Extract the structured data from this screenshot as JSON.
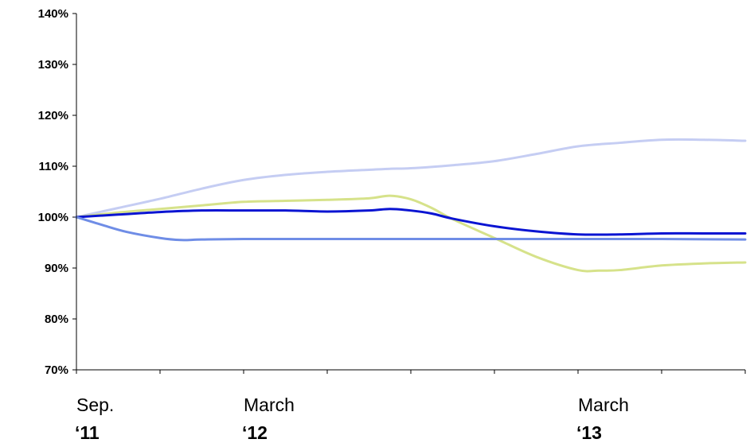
{
  "chart_data": {
    "type": "line",
    "title": "",
    "xlabel": "",
    "ylabel": "",
    "ylim": [
      70,
      140
    ],
    "yticks": [
      70,
      80,
      90,
      100,
      110,
      120,
      130,
      140
    ],
    "ytick_labels": [
      "70%",
      "80%",
      "90%",
      "100%",
      "110%",
      "120%",
      "130%",
      "140%"
    ],
    "xlim": [
      0,
      8
    ],
    "x_tick_positions": [
      0,
      1,
      2,
      3,
      4,
      5,
      6,
      7,
      8
    ],
    "x_labels": [
      {
        "x": 0,
        "line1": "Sep.",
        "line2": "‘11"
      },
      {
        "x": 2,
        "line1": "March",
        "line2": "‘12"
      },
      {
        "x": 6,
        "line1": "March",
        "line2": "‘13"
      }
    ],
    "grid": false,
    "legend": "none",
    "series": [
      {
        "color": "#c5cdf3",
        "x": [
          0,
          0.5,
          1,
          1.5,
          2,
          2.5,
          3,
          3.5,
          3.75,
          4,
          4.5,
          5,
          5.5,
          6,
          6.5,
          7,
          7.5,
          8
        ],
        "values": [
          100,
          101.8,
          103.6,
          105.6,
          107.3,
          108.3,
          108.9,
          109.3,
          109.5,
          109.6,
          110.2,
          111,
          112.4,
          113.9,
          114.6,
          115.2,
          115.2,
          115
        ]
      },
      {
        "color": "#d6e28a",
        "x": [
          0,
          0.5,
          1,
          1.5,
          2,
          2.5,
          3,
          3.5,
          3.75,
          4,
          4.25,
          4.5,
          5,
          5.5,
          6,
          6.25,
          6.5,
          7,
          7.5,
          8
        ],
        "values": [
          100,
          100.9,
          101.6,
          102.3,
          103,
          103.2,
          103.4,
          103.7,
          104.2,
          103.5,
          101.8,
          99.6,
          95.9,
          92.2,
          89.6,
          89.5,
          89.6,
          90.5,
          90.9,
          91.1
        ]
      },
      {
        "color": "#0a14d2",
        "x": [
          0,
          0.5,
          1,
          1.5,
          2,
          2.5,
          3,
          3.5,
          3.75,
          4,
          4.25,
          4.5,
          5,
          5.5,
          6,
          6.5,
          7,
          7.5,
          8
        ],
        "values": [
          100,
          100.5,
          101,
          101.3,
          101.3,
          101.3,
          101.1,
          101.3,
          101.6,
          101.3,
          100.7,
          99.7,
          98.2,
          97.2,
          96.6,
          96.6,
          96.8,
          96.8,
          96.8
        ]
      },
      {
        "color": "#6f8de6",
        "x": [
          0,
          0.3,
          0.6,
          1,
          1.25,
          1.5,
          2,
          3,
          4,
          5,
          6,
          7,
          8
        ],
        "values": [
          100,
          98.5,
          97.1,
          95.9,
          95.5,
          95.6,
          95.7,
          95.7,
          95.7,
          95.7,
          95.7,
          95.7,
          95.6
        ]
      }
    ]
  }
}
